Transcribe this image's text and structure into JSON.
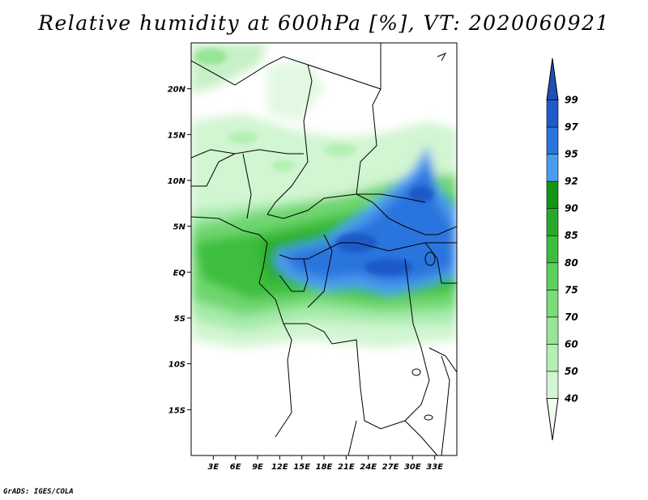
{
  "title": "Relative humidity at 600hPa [%], VT: 2020060921",
  "footer": "GrADS: IGES/COLA",
  "lat_labels": [
    "20N",
    "15N",
    "10N",
    "5N",
    "EQ",
    "5S",
    "10S",
    "15S"
  ],
  "lat_values": [
    20,
    15,
    10,
    5,
    0,
    -5,
    -10,
    -15
  ],
  "lon_labels": [
    "3E",
    "6E",
    "9E",
    "12E",
    "15E",
    "18E",
    "21E",
    "24E",
    "27E",
    "30E",
    "33E"
  ],
  "lon_values": [
    3,
    6,
    9,
    12,
    15,
    18,
    21,
    24,
    27,
    30,
    33
  ],
  "colorbar": {
    "levels": [
      "40",
      "50",
      "60",
      "70",
      "75",
      "80",
      "85",
      "90",
      "92",
      "95",
      "97",
      "99"
    ],
    "colors": [
      "#f0fcf0",
      "#d2f5d2",
      "#b4f0b4",
      "#96e696",
      "#78dc78",
      "#5ad25a",
      "#3cbe3c",
      "#28aa28",
      "#149614",
      "#4b9bf0",
      "#2a74dd",
      "#1e5ac8",
      "#1e50b4"
    ]
  }
}
